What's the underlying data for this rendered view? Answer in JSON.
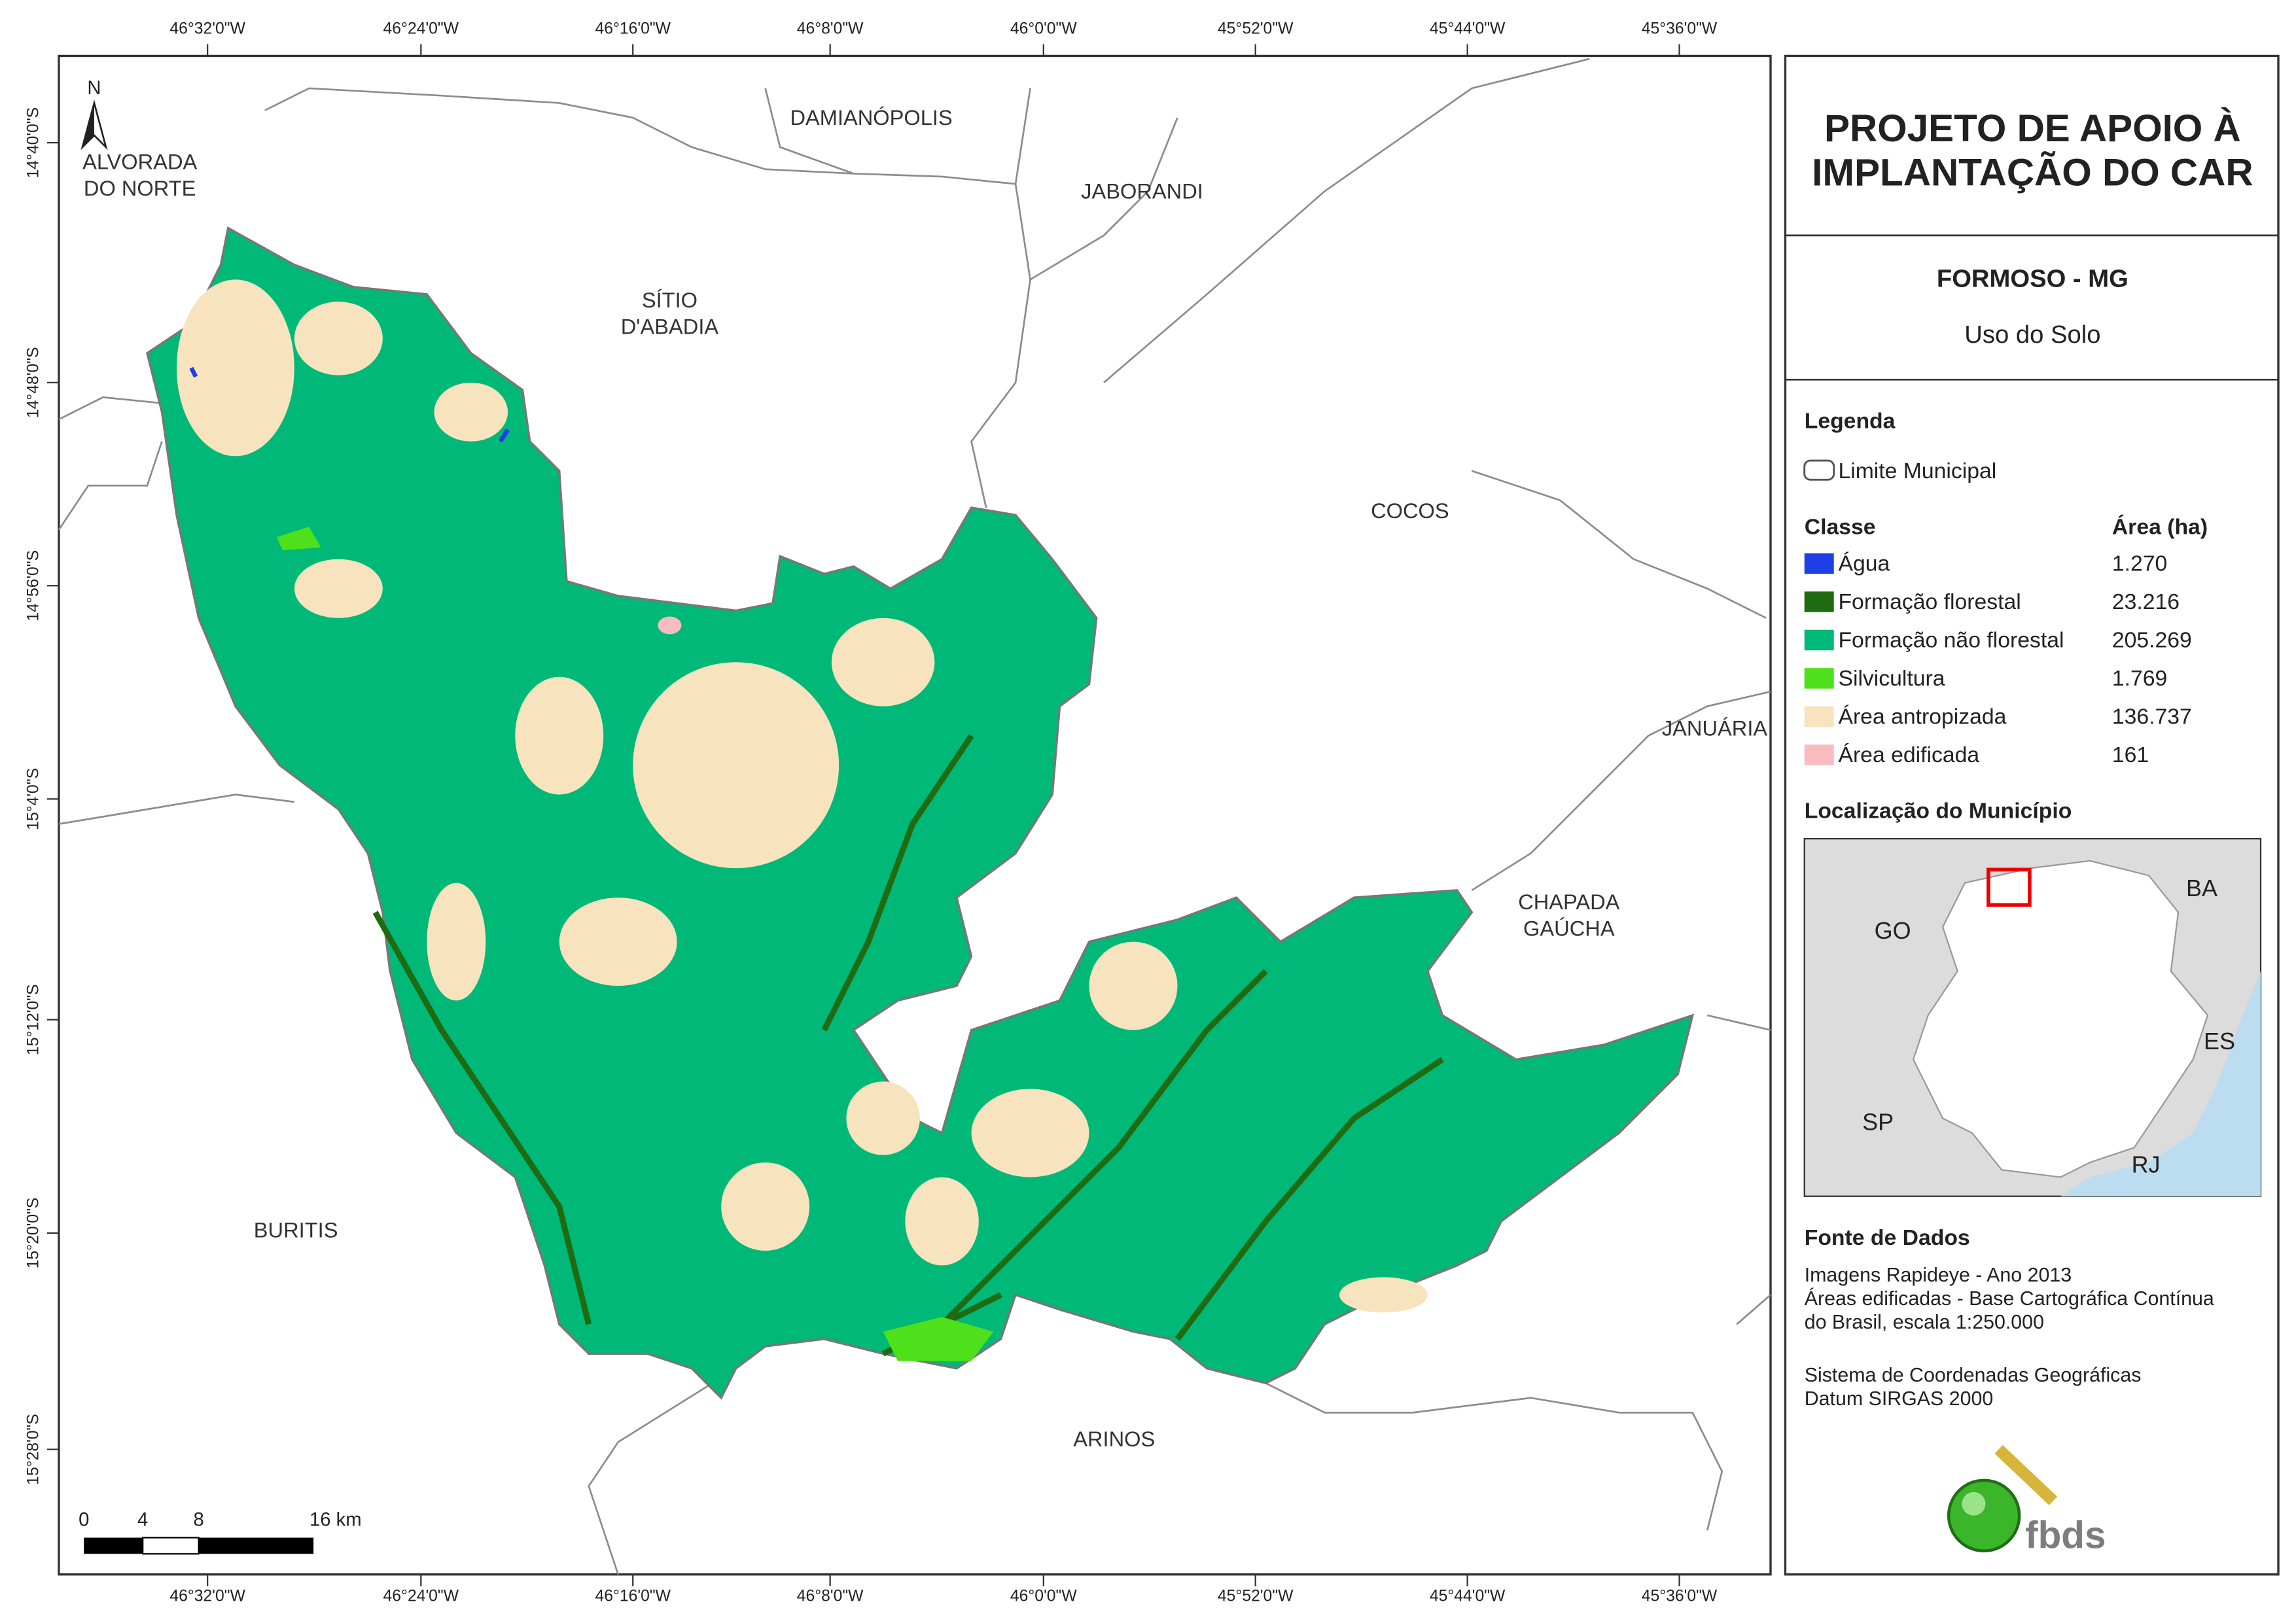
{
  "title": [
    "PROJETO DE APOIO À",
    "IMPLANTAÇÃO DO CAR"
  ],
  "municipality": "FORMOSO - MG",
  "subtitle": "Uso do Solo",
  "legend": {
    "title": "Legenda",
    "boundary": "Limite Municipal",
    "class_header": "Classe",
    "area_header": "Área (ha)",
    "classes": [
      {
        "name": "Água",
        "area": "1.270",
        "color": "#1f3fe6"
      },
      {
        "name": "Formação florestal",
        "area": "23.216",
        "color": "#1e6b12"
      },
      {
        "name": "Formação não florestal",
        "area": "205.269",
        "color": "#00b877"
      },
      {
        "name": "Silvicultura",
        "area": "1.769",
        "color": "#4ee01a"
      },
      {
        "name": "Área antropizada",
        "area": "136.737",
        "color": "#f7e4bf"
      },
      {
        "name": "Área edificada",
        "area": "161",
        "color": "#f8bcc0"
      }
    ]
  },
  "location": {
    "title": "Localização do Município",
    "states": [
      "BA",
      "GO",
      "ES",
      "SP",
      "RJ"
    ]
  },
  "sources": {
    "title": "Fonte de Dados",
    "lines": [
      "Imagens Rapideye - Ano 2013",
      "Áreas edificadas - Base Cartográfica Contínua",
      "do Brasil, escala 1:250.000",
      "Sistema de Coordenadas Geográficas",
      "Datum SIRGAS 2000"
    ]
  },
  "places": [
    [
      "ALVORADA",
      "DO NORTE"
    ],
    [
      "DAMIANÓPOLIS"
    ],
    [
      "JABORANDI"
    ],
    [
      "SÍTIO",
      "D'ABADIA"
    ],
    [
      "COCOS"
    ],
    [
      "JANUÁRIA"
    ],
    [
      "CHAPADA",
      "GAÚCHA"
    ],
    [
      "BURITIS"
    ],
    [
      "ARINOS"
    ]
  ],
  "longitudes": [
    "46°32'0\"W",
    "46°24'0\"W",
    "46°16'0\"W",
    "46°8'0\"W",
    "46°0'0\"W",
    "45°52'0\"W",
    "45°44'0\"W",
    "45°36'0\"W"
  ],
  "latitudes": [
    "14°40'0\"S",
    "14°48'0\"S",
    "14°56'0\"S",
    "15°4'0\"S",
    "15°12'0\"S",
    "15°20'0\"S",
    "15°28'0\"S"
  ],
  "north": "N",
  "scale": [
    "0",
    "4",
    "8",
    "16 km"
  ],
  "logo": "fbds"
}
